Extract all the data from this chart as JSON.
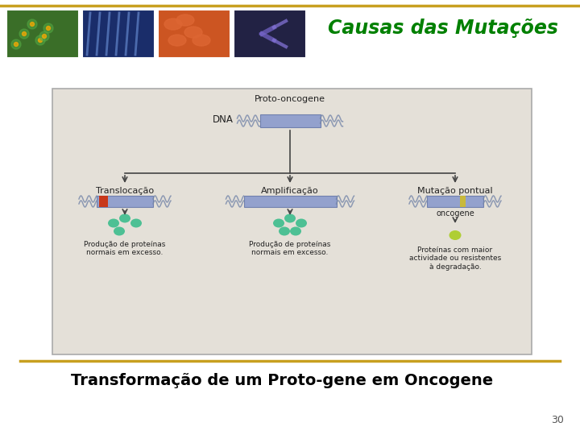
{
  "title": "Causas das Mutações",
  "title_color": "#008000",
  "subtitle": "Transformação de um Proto-gene em Oncogene",
  "subtitle_color": "#000000",
  "page_number": "30",
  "background_color": "#ffffff",
  "gold_line_color": "#C8A020",
  "diagram_bg": "#e4e0d8",
  "diagram_border": "#aaaaaa",
  "label_proto": "Proto-oncogene",
  "label_dna": "DNA",
  "label_translocacao": "Translocação",
  "label_amplificacao": "Amplificação",
  "label_mutacao": "Mutação pontual",
  "label_oncogene": "oncogene",
  "label_prod1": "Produção de proteínas\nnormais em excesso.",
  "label_prod2": "Produção de proteínas\nnormais em excesso.",
  "label_prod3": "Proteínas com maior\nactividade ou resistentes\nà degradação.",
  "dna_blue": "#8899cc",
  "dna_blue_dark": "#6677aa",
  "dna_red": "#cc3311",
  "dna_yellow": "#ccbb33",
  "protein_green": "#33bb88",
  "protein_yellow": "#aacc22",
  "wavy_color": "#7788aa",
  "arrow_color": "#444444",
  "text_color": "#222222"
}
